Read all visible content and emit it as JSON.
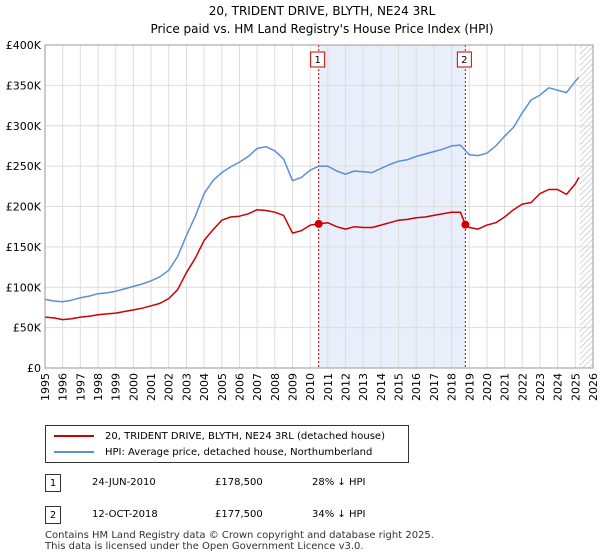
{
  "chart_data": {
    "type": "line",
    "title": "20, TRIDENT DRIVE, BLYTH, NE24 3RL",
    "subtitle": "Price paid vs. HM Land Registry's House Price Index (HPI)",
    "xlabel": "",
    "ylabel": "",
    "xlim": [
      1995,
      2026
    ],
    "ylim": [
      0,
      400000
    ],
    "y_ticks": [
      0,
      50000,
      100000,
      150000,
      200000,
      250000,
      300000,
      350000,
      400000
    ],
    "y_tick_labels": [
      "£0",
      "£50K",
      "£100K",
      "£150K",
      "£200K",
      "£250K",
      "£300K",
      "£350K",
      "£400K"
    ],
    "x_ticks": [
      1995,
      1996,
      1997,
      1998,
      1999,
      2000,
      2001,
      2002,
      2003,
      2004,
      2005,
      2006,
      2007,
      2008,
      2009,
      2010,
      2011,
      2012,
      2013,
      2014,
      2015,
      2016,
      2017,
      2018,
      2019,
      2020,
      2021,
      2022,
      2023,
      2024,
      2025,
      2026
    ],
    "grid": true,
    "colors": {
      "price": "#cc0000",
      "hpi": "#5b8fd4",
      "shade": "#e8eefa",
      "marker_line": "#cc0000",
      "hatch": "#999999"
    },
    "shaded_region": [
      2010.48,
      2018.78
    ],
    "hatched_from": 2025.25,
    "series": [
      {
        "name": "20, TRIDENT DRIVE, BLYTH, NE24 3RL (detached house)",
        "x": [
          1995.0,
          1995.5,
          1996.0,
          1996.5,
          1997.0,
          1997.5,
          1998.0,
          1998.5,
          1999.0,
          1999.5,
          2000.0,
          2000.5,
          2001.0,
          2001.5,
          2002.0,
          2002.5,
          2003.0,
          2003.5,
          2004.0,
          2004.5,
          2005.0,
          2005.5,
          2006.0,
          2006.5,
          2007.0,
          2007.5,
          2008.0,
          2008.5,
          2009.0,
          2009.5,
          2010.0,
          2010.48,
          2011.0,
          2011.5,
          2012.0,
          2012.5,
          2013.0,
          2013.5,
          2014.0,
          2014.5,
          2015.0,
          2015.5,
          2016.0,
          2016.5,
          2017.0,
          2017.5,
          2018.0,
          2018.5,
          2018.78,
          2019.0,
          2019.5,
          2020.0,
          2020.5,
          2021.0,
          2021.5,
          2022.0,
          2022.5,
          2023.0,
          2023.5,
          2024.0,
          2024.5,
          2025.0,
          2025.2
        ],
        "values": [
          63000,
          62000,
          60000,
          61000,
          63000,
          64000,
          66000,
          67000,
          68000,
          70000,
          72000,
          74000,
          77000,
          80000,
          86000,
          97000,
          118000,
          136000,
          158000,
          171000,
          183000,
          187000,
          188000,
          191000,
          196000,
          195000,
          193000,
          189000,
          167000,
          170000,
          177000,
          178500,
          180000,
          175000,
          172000,
          175000,
          174000,
          174000,
          177000,
          180000,
          183000,
          184000,
          186000,
          187000,
          189000,
          191000,
          193000,
          193000,
          177500,
          174000,
          172000,
          177000,
          180000,
          187000,
          196000,
          203000,
          205000,
          216000,
          221000,
          221000,
          215000,
          228000,
          236000
        ]
      },
      {
        "name": "HPI: Average price, detached house, Northumberland",
        "x": [
          1995.0,
          1995.5,
          1996.0,
          1996.5,
          1997.0,
          1997.5,
          1998.0,
          1998.5,
          1999.0,
          1999.5,
          2000.0,
          2000.5,
          2001.0,
          2001.5,
          2002.0,
          2002.5,
          2003.0,
          2003.5,
          2004.0,
          2004.5,
          2005.0,
          2005.5,
          2006.0,
          2006.5,
          2007.0,
          2007.5,
          2008.0,
          2008.5,
          2009.0,
          2009.5,
          2010.0,
          2010.5,
          2011.0,
          2011.5,
          2012.0,
          2012.5,
          2013.0,
          2013.5,
          2014.0,
          2014.5,
          2015.0,
          2015.5,
          2016.0,
          2016.5,
          2017.0,
          2017.5,
          2018.0,
          2018.5,
          2019.0,
          2019.5,
          2020.0,
          2020.5,
          2021.0,
          2021.5,
          2022.0,
          2022.5,
          2023.0,
          2023.5,
          2024.0,
          2024.5,
          2025.0,
          2025.2
        ],
        "values": [
          85000,
          83000,
          82000,
          84000,
          87000,
          89000,
          92000,
          93000,
          95000,
          98000,
          101000,
          104000,
          108000,
          113000,
          121000,
          138000,
          164000,
          188000,
          216000,
          232000,
          242000,
          249000,
          255000,
          262000,
          272000,
          274000,
          269000,
          259000,
          232000,
          236000,
          245000,
          250000,
          250000,
          244000,
          240000,
          244000,
          243000,
          242000,
          247000,
          252000,
          256000,
          258000,
          262000,
          265000,
          268000,
          271000,
          275000,
          276000,
          264000,
          263000,
          266000,
          275000,
          287000,
          298000,
          316000,
          332000,
          338000,
          347000,
          344000,
          341000,
          355000,
          360000
        ]
      }
    ],
    "markers": [
      {
        "label": "1",
        "x": 2010.48,
        "y": 178500
      },
      {
        "label": "2",
        "x": 2018.78,
        "y": 177500
      }
    ]
  },
  "legend": {
    "price_label": "20, TRIDENT DRIVE, BLYTH, NE24 3RL (detached house)",
    "hpi_label": "HPI: Average price, detached house, Northumberland"
  },
  "transactions": [
    {
      "num": "1",
      "date": "24-JUN-2010",
      "price": "£178,500",
      "hpi": "28% ↓ HPI"
    },
    {
      "num": "2",
      "date": "12-OCT-2018",
      "price": "£177,500",
      "hpi": "34% ↓ HPI"
    }
  ],
  "footer": {
    "line1": "Contains HM Land Registry data © Crown copyright and database right 2025.",
    "line2": "This data is licensed under the Open Government Licence v3.0."
  }
}
